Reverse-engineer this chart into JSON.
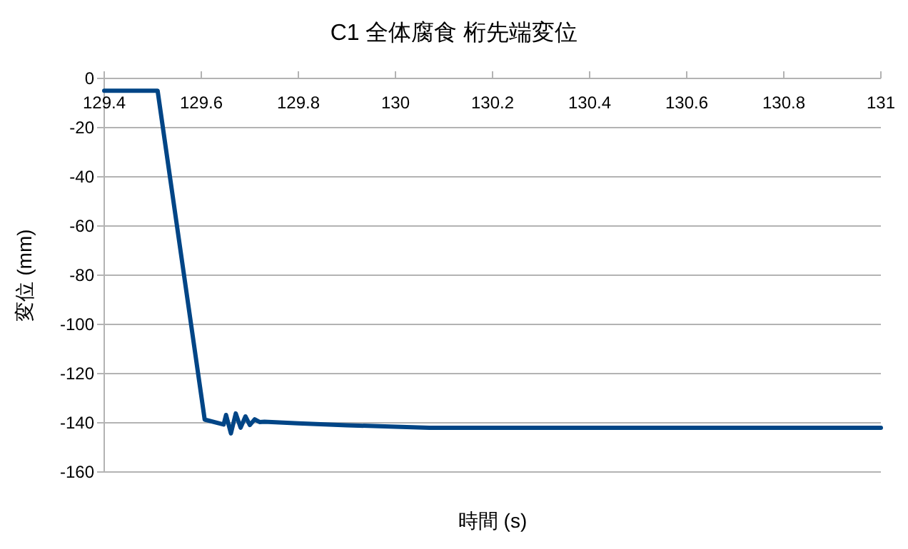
{
  "chart_data": {
    "type": "line",
    "title": "C1 全体腐食 桁先端変位",
    "xlabel": "時間 (s)",
    "ylabel": "変位 (mm)",
    "xlim": [
      129.4,
      131
    ],
    "xticks": [
      129.4,
      129.6,
      129.8,
      130,
      130.2,
      130.4,
      130.6,
      130.8,
      131
    ],
    "ylim": [
      -160,
      0
    ],
    "yticks": [
      0,
      -20,
      -40,
      -60,
      -80,
      -100,
      -120,
      -140,
      -160
    ],
    "grid": "y",
    "marker": "none",
    "line_style": "solid",
    "series": [
      {
        "color": "#004586",
        "x": [
          129.4,
          129.51,
          129.607,
          129.646,
          129.651,
          129.661,
          129.671,
          129.681,
          129.691,
          129.7,
          129.71,
          129.72,
          129.73,
          129.8,
          129.9,
          130,
          130.07,
          130.2,
          130.5,
          131
        ],
        "values": [
          -5,
          -5,
          -138.7,
          -140.7,
          -136.8,
          -144.3,
          -136.2,
          -142,
          -137.4,
          -140.9,
          -138.6,
          -139.7,
          -139.6,
          -140.2,
          -141,
          -141.6,
          -142,
          -142,
          -142,
          -142
        ]
      }
    ]
  }
}
